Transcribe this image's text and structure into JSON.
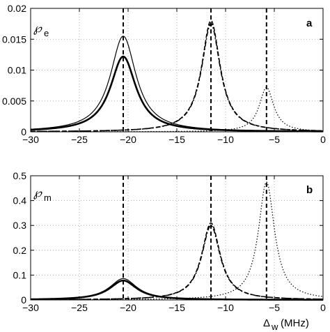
{
  "chart_data": [
    {
      "type": "line",
      "panel_letter": "a",
      "ylabel_symbol": "℘",
      "ylabel_subscript": "e",
      "xlim": [
        -30,
        0
      ],
      "ylim": [
        0,
        0.02
      ],
      "xticks": [
        "−30",
        "−25",
        "−20",
        "−15",
        "−10",
        "−5",
        "0"
      ],
      "yticks": [
        "0",
        "0.005",
        "0.01",
        "0.015",
        "0.02"
      ],
      "grid": true,
      "vlines": [
        -20.5,
        -11.5,
        -5.8
      ],
      "series": [
        {
          "style": "solid-thin",
          "x0": -20.5,
          "hwhm": 1.6,
          "peak": 0.0155
        },
        {
          "style": "solid-thick",
          "x0": -20.5,
          "hwhm": 1.6,
          "peak": 0.0122
        },
        {
          "style": "dashed",
          "x0": -11.5,
          "hwhm": 1.15,
          "peak": 0.018
        },
        {
          "style": "dashdot",
          "x0": -11.5,
          "hwhm": 1.15,
          "peak": 0.0175
        },
        {
          "style": "dotted",
          "x0": -5.8,
          "hwhm": 0.9,
          "peak": 0.0072
        }
      ]
    },
    {
      "type": "line",
      "panel_letter": "b",
      "ylabel_symbol": "℘",
      "ylabel_subscript": "m",
      "xlabel_symbol": "Δ",
      "xlabel_subscript": "w",
      "xlabel_unit": "(MHz)",
      "xlim": [
        -30,
        0
      ],
      "ylim": [
        0,
        0.5
      ],
      "xticks": [
        "−30",
        "−25",
        "−20",
        "−15",
        "−10",
        "−5",
        "0"
      ],
      "yticks": [
        "0",
        "0.1",
        "0.2",
        "0.3",
        "0.4",
        "0.5"
      ],
      "grid": true,
      "vlines": [
        -20.5,
        -11.5,
        -5.8
      ],
      "series": [
        {
          "style": "solid-thin",
          "x0": -20.5,
          "hwhm": 1.7,
          "peak": 0.086
        },
        {
          "style": "solid-thick",
          "x0": -20.5,
          "hwhm": 1.7,
          "peak": 0.078
        },
        {
          "style": "dashed",
          "x0": -11.5,
          "hwhm": 1.15,
          "peak": 0.31
        },
        {
          "style": "dashdot",
          "x0": -11.5,
          "hwhm": 1.15,
          "peak": 0.3
        },
        {
          "style": "dotted",
          "x0": -5.8,
          "hwhm": 1.0,
          "peak": 0.475
        }
      ]
    }
  ]
}
